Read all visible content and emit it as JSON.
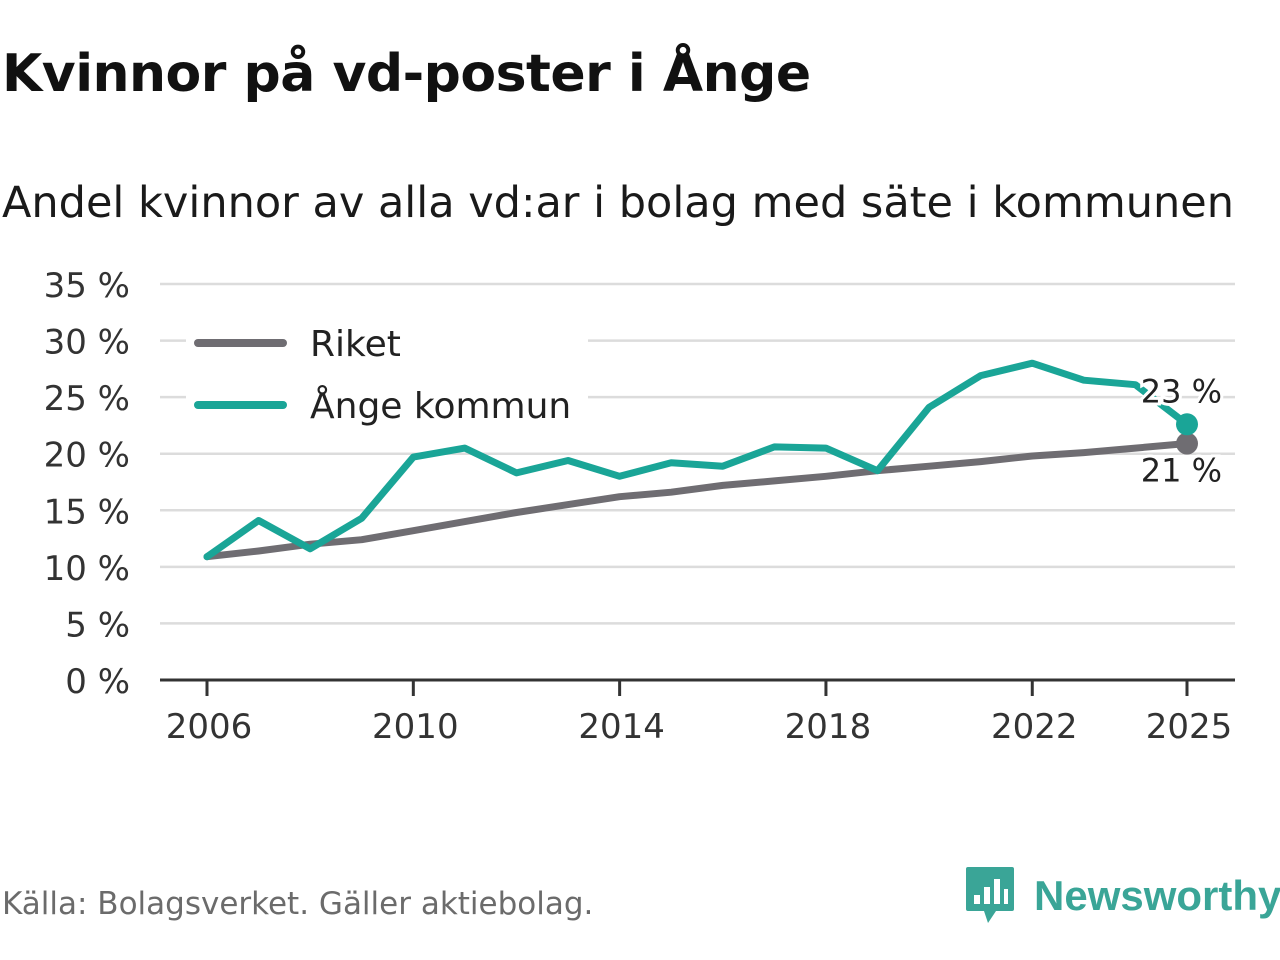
{
  "header": {
    "title": "Kvinnor på vd-poster i Ånge",
    "subtitle": "Andel kvinnor av alla vd:ar i bolag med säte i kommunen"
  },
  "footer": {
    "source": "Källa: Bolagsverket. Gäller aktiebolag.",
    "brand": "Newsworthy",
    "brand_icon": "newsworthy-logo-icon",
    "brand_color": "#3aa597"
  },
  "chart_data": {
    "type": "line",
    "title": "Kvinnor på vd-poster i Ånge",
    "subtitle": "Andel kvinnor av alla vd:ar i bolag med säte i kommunen",
    "xlabel": "",
    "ylabel": "",
    "x": [
      2006,
      2007,
      2008,
      2009,
      2010,
      2011,
      2012,
      2013,
      2014,
      2015,
      2016,
      2017,
      2018,
      2019,
      2020,
      2021,
      2022,
      2023,
      2024,
      2025
    ],
    "xlim": [
      2006,
      2025
    ],
    "x_ticks": [
      2006,
      2010,
      2014,
      2018,
      2022,
      2025
    ],
    "x_tick_labels": [
      "2006",
      "2010",
      "2014",
      "2018",
      "2022",
      "2025"
    ],
    "ylim": [
      0,
      35
    ],
    "y_ticks": [
      0,
      5,
      10,
      15,
      20,
      25,
      30,
      35
    ],
    "y_tick_labels": [
      "0 %",
      "5 %",
      "10 %",
      "15 %",
      "20 %",
      "25 %",
      "30 %",
      "35 %"
    ],
    "grid": true,
    "legend_position": "top-left",
    "series": [
      {
        "name": "Riket",
        "color": "#6f6d72",
        "values": [
          10.9,
          11.4,
          12.0,
          12.4,
          13.2,
          14.0,
          14.8,
          15.5,
          16.2,
          16.6,
          17.2,
          17.6,
          18.0,
          18.5,
          18.9,
          19.3,
          19.8,
          20.1,
          20.5,
          20.9
        ],
        "end_label": "21 %"
      },
      {
        "name": "Ånge kommun",
        "color": "#1aa597",
        "values": [
          10.9,
          14.1,
          11.6,
          14.3,
          19.7,
          20.5,
          18.3,
          19.4,
          18.0,
          19.2,
          18.9,
          20.6,
          20.5,
          18.5,
          24.1,
          26.9,
          28.0,
          26.5,
          26.1,
          22.6
        ],
        "end_label": "23 %"
      }
    ]
  }
}
